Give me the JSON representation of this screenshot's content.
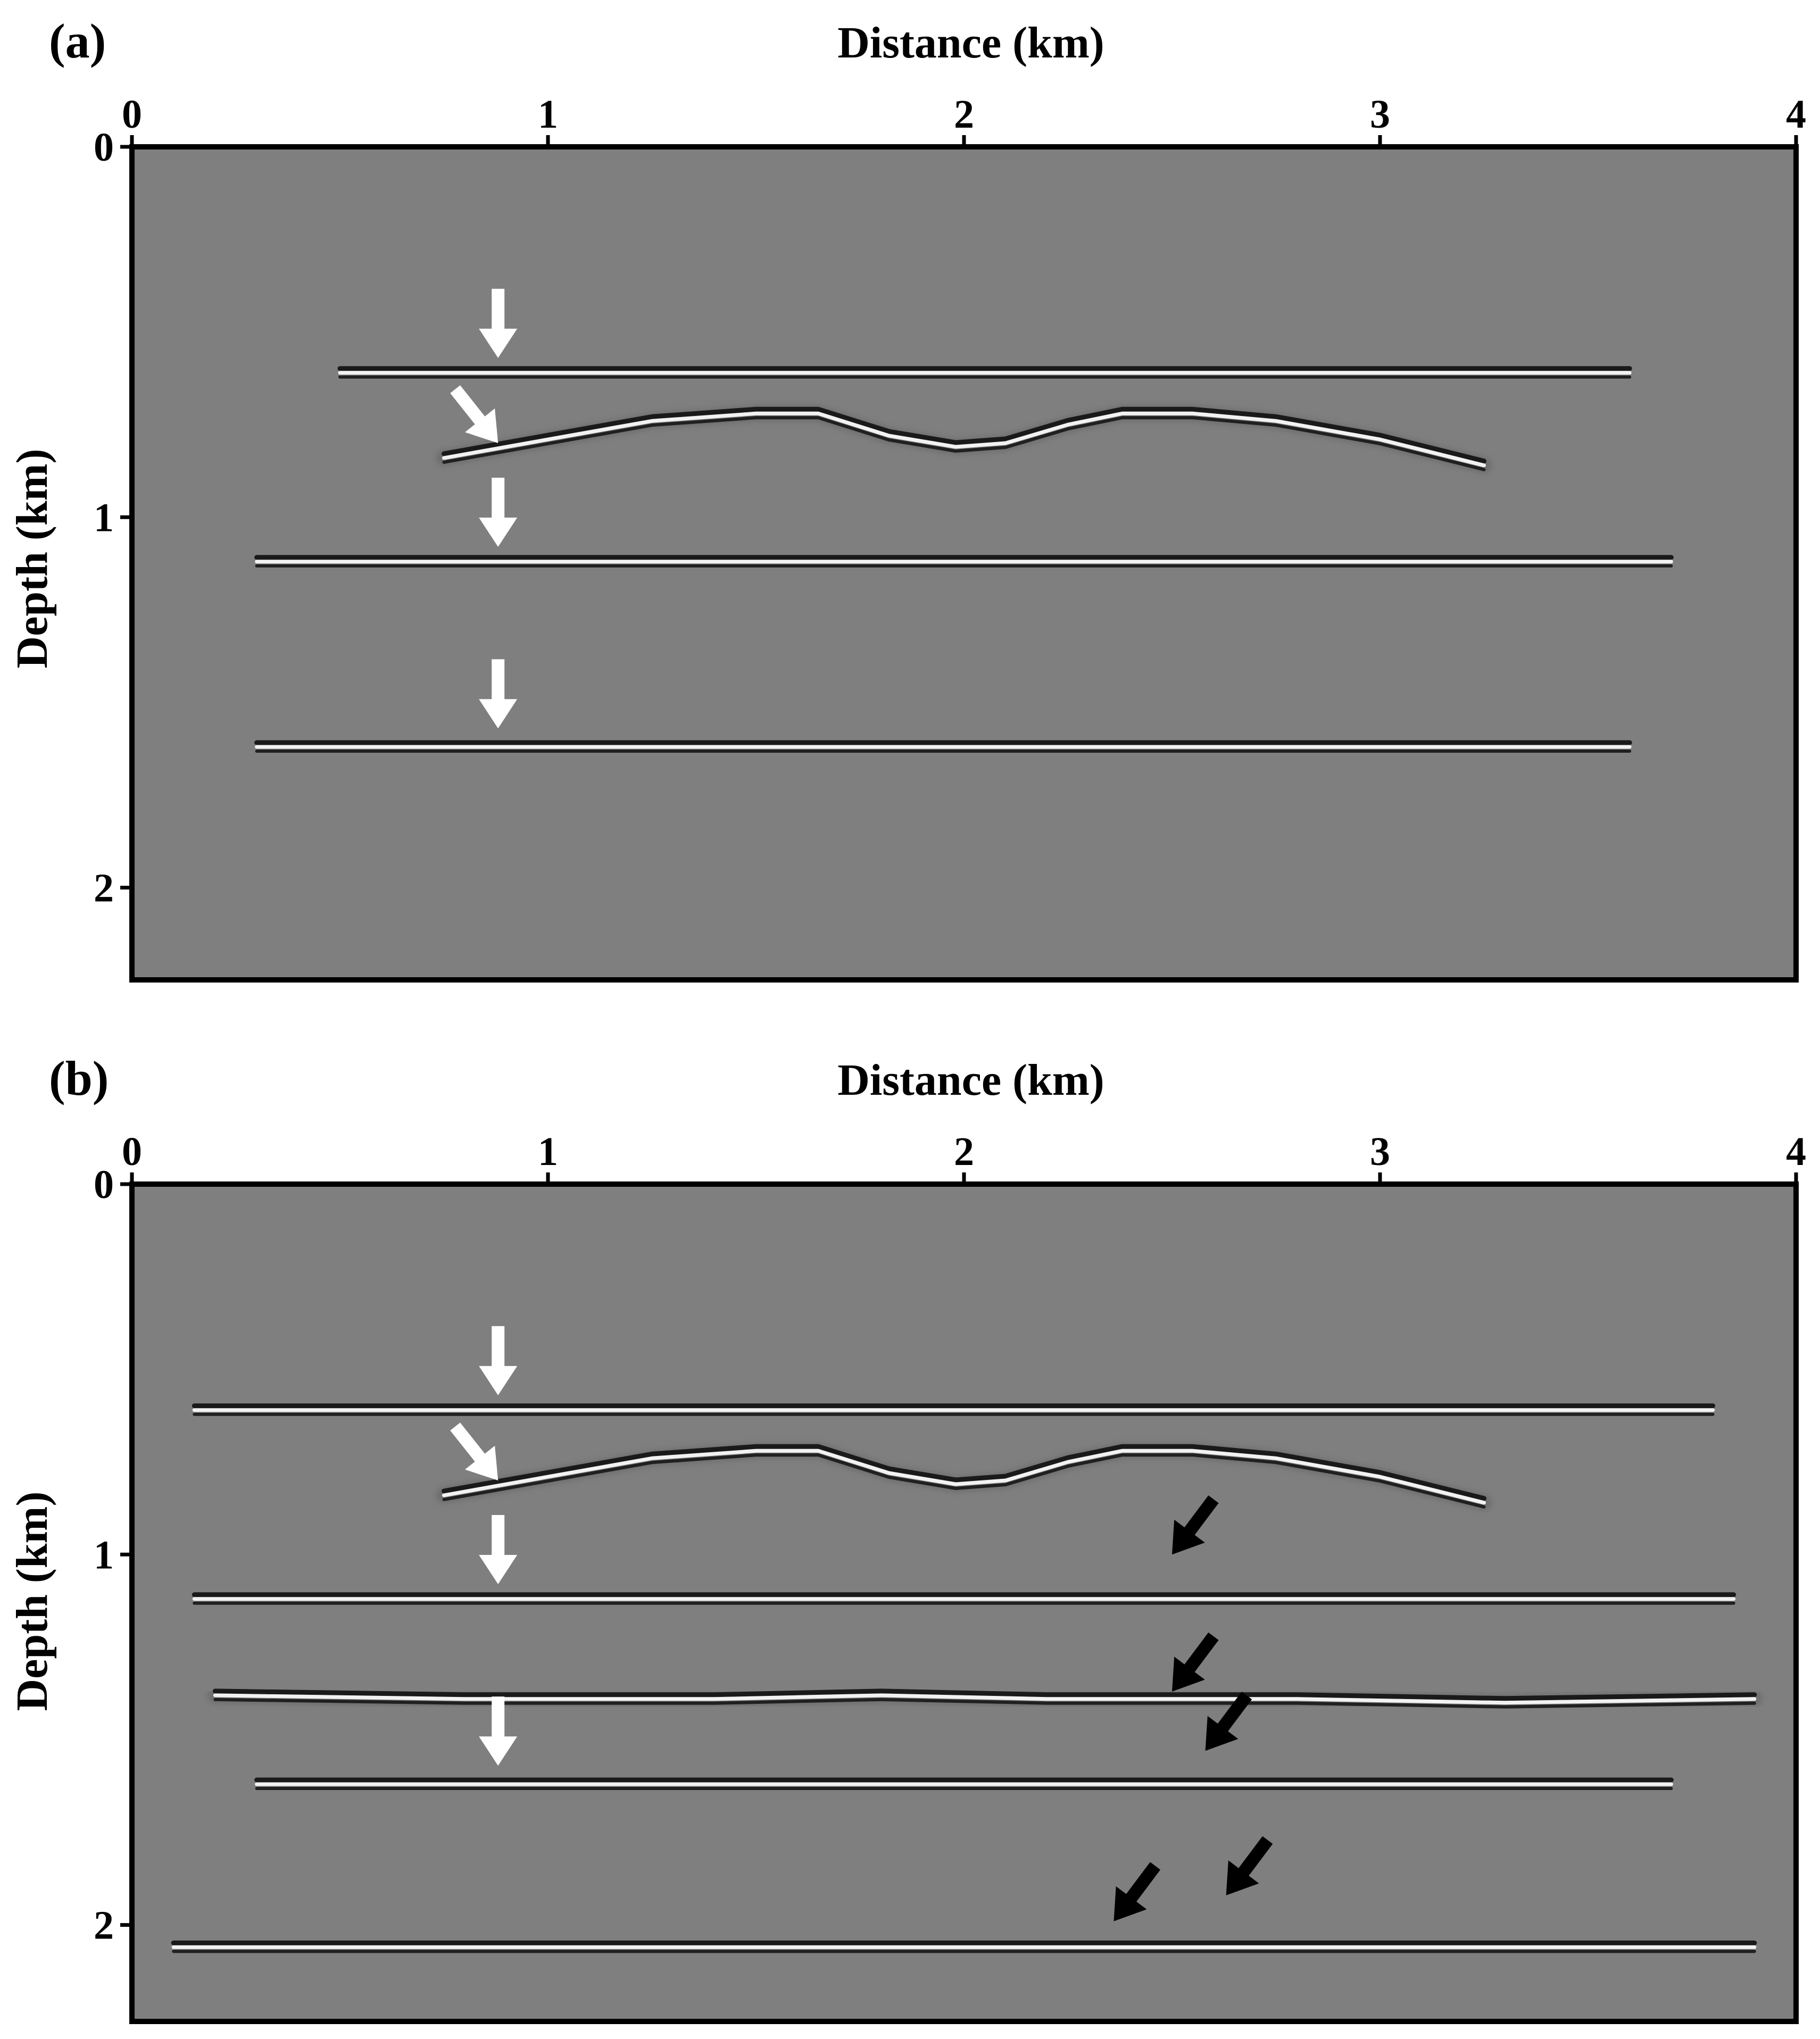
{
  "figure": {
    "background": "#ffffff",
    "section_fill": "#7f7f7f"
  },
  "chart_data": [
    {
      "type": "heatmap",
      "panel_label": "(a)",
      "xlabel": "Distance (km)",
      "ylabel": "Depth (km)",
      "xlim": [
        0,
        4
      ],
      "ylim": [
        0,
        2.25
      ],
      "y_inverted": true,
      "x_ticks": [
        "0",
        "1",
        "2",
        "3",
        "4"
      ],
      "y_ticks": [
        "0",
        "1",
        "2"
      ],
      "reflectors": [
        {
          "kind": "flat",
          "depth": 0.61,
          "x_from": 0.5,
          "x_to": 3.6
        },
        {
          "kind": "curve",
          "points": [
            [
              0.75,
              0.84
            ],
            [
              1.0,
              0.79
            ],
            [
              1.25,
              0.74
            ],
            [
              1.5,
              0.72
            ],
            [
              1.65,
              0.72
            ],
            [
              1.82,
              0.78
            ],
            [
              1.98,
              0.81
            ],
            [
              2.1,
              0.8
            ],
            [
              2.25,
              0.75
            ],
            [
              2.38,
              0.72
            ],
            [
              2.55,
              0.72
            ],
            [
              2.75,
              0.74
            ],
            [
              3.0,
              0.79
            ],
            [
              3.25,
              0.86
            ]
          ]
        },
        {
          "kind": "flat",
          "depth": 1.12,
          "x_from": 0.3,
          "x_to": 3.7
        },
        {
          "kind": "flat",
          "depth": 1.62,
          "x_from": 0.3,
          "x_to": 3.6
        }
      ],
      "annotation_arrows": [
        {
          "color": "#ffffff",
          "x": 0.88,
          "depth": 0.57,
          "direction": "down"
        },
        {
          "color": "#ffffff",
          "x": 0.88,
          "depth": 0.8,
          "direction": "down-right"
        },
        {
          "color": "#ffffff",
          "x": 0.88,
          "depth": 1.08,
          "direction": "down"
        },
        {
          "color": "#ffffff",
          "x": 0.88,
          "depth": 1.57,
          "direction": "down"
        }
      ]
    },
    {
      "type": "heatmap",
      "panel_label": "(b)",
      "xlabel": "Distance (km)",
      "ylabel": "Depth (km)",
      "xlim": [
        0,
        4
      ],
      "ylim": [
        0,
        2.35
      ],
      "y_inverted": true,
      "x_ticks": [
        "0",
        "1",
        "2",
        "3",
        "4"
      ],
      "y_ticks": [
        "0",
        "1",
        "2"
      ],
      "reflectors": [
        {
          "kind": "flat",
          "depth": 0.61,
          "x_from": 0.15,
          "x_to": 3.8
        },
        {
          "kind": "curve",
          "points": [
            [
              0.75,
              0.84
            ],
            [
              1.0,
              0.79
            ],
            [
              1.25,
              0.74
            ],
            [
              1.5,
              0.72
            ],
            [
              1.65,
              0.72
            ],
            [
              1.82,
              0.78
            ],
            [
              1.98,
              0.81
            ],
            [
              2.1,
              0.8
            ],
            [
              2.25,
              0.75
            ],
            [
              2.38,
              0.72
            ],
            [
              2.55,
              0.72
            ],
            [
              2.75,
              0.74
            ],
            [
              3.0,
              0.79
            ],
            [
              3.25,
              0.86
            ]
          ]
        },
        {
          "kind": "flat",
          "depth": 1.12,
          "x_from": 0.15,
          "x_to": 3.85
        },
        {
          "kind": "curve",
          "points": [
            [
              0.2,
              1.38
            ],
            [
              0.8,
              1.39
            ],
            [
              1.4,
              1.39
            ],
            [
              1.8,
              1.38
            ],
            [
              2.2,
              1.39
            ],
            [
              2.8,
              1.39
            ],
            [
              3.3,
              1.4
            ],
            [
              3.9,
              1.39
            ]
          ]
        },
        {
          "kind": "flat",
          "depth": 1.62,
          "x_from": 0.3,
          "x_to": 3.7
        },
        {
          "kind": "flat",
          "depth": 2.06,
          "x_from": 0.1,
          "x_to": 3.9
        }
      ],
      "annotation_arrows": [
        {
          "color": "#ffffff",
          "x": 0.88,
          "depth": 0.57,
          "direction": "down"
        },
        {
          "color": "#ffffff",
          "x": 0.88,
          "depth": 0.8,
          "direction": "down-right"
        },
        {
          "color": "#ffffff",
          "x": 0.88,
          "depth": 1.08,
          "direction": "down"
        },
        {
          "color": "#ffffff",
          "x": 0.88,
          "depth": 1.57,
          "direction": "down"
        },
        {
          "color": "#000000",
          "x": 2.5,
          "depth": 1.0,
          "direction": "down-left"
        },
        {
          "color": "#000000",
          "x": 2.5,
          "depth": 1.37,
          "direction": "down-left"
        },
        {
          "color": "#000000",
          "x": 2.58,
          "depth": 1.53,
          "direction": "down-left"
        },
        {
          "color": "#000000",
          "x": 2.63,
          "depth": 1.92,
          "direction": "down-left"
        },
        {
          "color": "#000000",
          "x": 2.36,
          "depth": 1.99,
          "direction": "down-left"
        }
      ]
    }
  ]
}
